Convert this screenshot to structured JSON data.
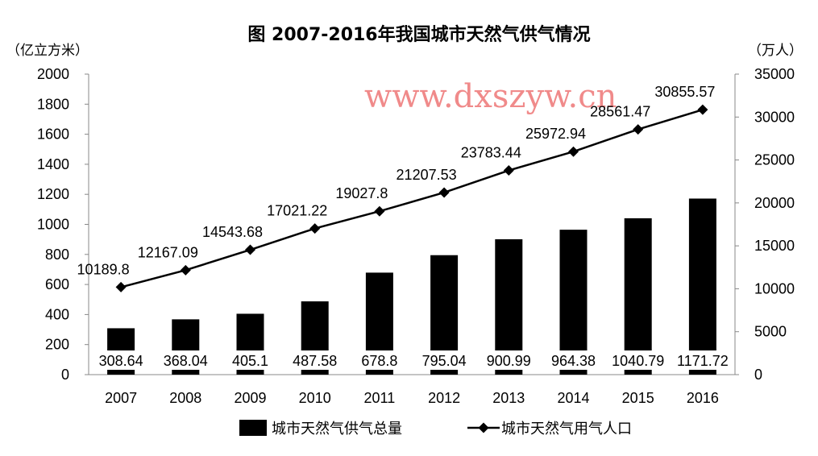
{
  "chart_data": {
    "type": "bar",
    "title": "图 2007-2016年我国城市天然气供气情况",
    "watermark": "www.dxszyw.cn",
    "categories": [
      "2007",
      "2008",
      "2009",
      "2010",
      "2011",
      "2012",
      "2013",
      "2014",
      "2015",
      "2016"
    ],
    "left_axis": {
      "unit": "（亿立方米）",
      "min": 0,
      "max": 2000,
      "step": 200,
      "ticks": [
        "0",
        "200",
        "400",
        "600",
        "800",
        "1000",
        "1200",
        "1400",
        "1600",
        "1800",
        "2000"
      ]
    },
    "right_axis": {
      "unit": "（万人）",
      "min": 0,
      "max": 35000,
      "step": 5000,
      "ticks": [
        "0",
        "5000",
        "10000",
        "15000",
        "20000",
        "25000",
        "30000",
        "35000"
      ]
    },
    "series": [
      {
        "name": "城市天然气供气总量",
        "type": "bar",
        "axis": "left",
        "color": "#000000",
        "values": [
          308.64,
          368.04,
          405.1,
          487.58,
          678.8,
          795.04,
          900.99,
          964.38,
          1040.79,
          1171.72
        ],
        "labels": [
          "308.64",
          "368.04",
          "405.1",
          "487.58",
          "678.8",
          "795.04",
          "900.99",
          "964.38",
          "1040.79",
          "1171.72"
        ]
      },
      {
        "name": "城市天然气用气人口",
        "type": "line",
        "axis": "right",
        "color": "#000000",
        "marker": "diamond",
        "values": [
          10189.8,
          12167.09,
          14543.68,
          17021.22,
          19027.8,
          21207.53,
          23783.44,
          25972.94,
          28561.47,
          30855.57
        ],
        "labels": [
          "10189.8",
          "12167.09",
          "14543.68",
          "17021.22",
          "19027.8",
          "21207.53",
          "23783.44",
          "25972.94",
          "28561.47",
          "30855.57"
        ]
      }
    ],
    "grid": false,
    "legend_position": "bottom"
  }
}
